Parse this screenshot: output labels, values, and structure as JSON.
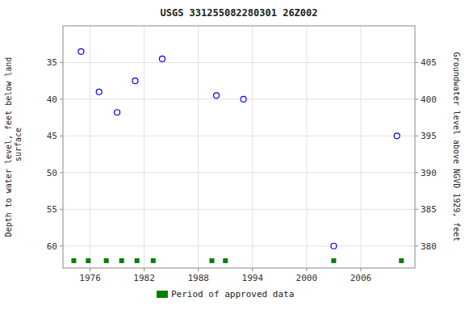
{
  "chart_data": {
    "type": "scatter",
    "title": "USGS 331255082280301 26Z002",
    "ylabel": "Depth to water level, feet below land\n surface",
    "y2label": "Groundwater level above NGVD 1929, feet",
    "xlim": [
      1973,
      2012
    ],
    "xticks": [
      1976,
      1982,
      1988,
      1994,
      2000,
      2006
    ],
    "ylim": [
      63,
      30
    ],
    "yticks": [
      35,
      40,
      45,
      50,
      55,
      60
    ],
    "y2lim": [
      377,
      410
    ],
    "y2ticks": [
      380,
      385,
      390,
      395,
      400,
      405
    ],
    "grid": true,
    "legend": "bottom",
    "series": [
      {
        "color": "blue",
        "marker": "circle-open",
        "x": [
          1975,
          1977,
          1979,
          1981,
          1984,
          1990,
          1993,
          2003,
          2010
        ],
        "values": [
          33.5,
          39.0,
          41.8,
          37.5,
          34.5,
          39.5,
          40.0,
          60.0,
          45.0
        ]
      },
      {
        "name": "Period of approved data",
        "color": "#008000",
        "marker": "square",
        "x": [
          1974.2,
          1975.8,
          1977.8,
          1979.5,
          1981.2,
          1983.0,
          1989.5,
          1991.0,
          2003.0,
          2010.5
        ],
        "values": [
          62,
          62,
          62,
          62,
          62,
          62,
          62,
          62,
          62,
          62
        ]
      }
    ]
  }
}
